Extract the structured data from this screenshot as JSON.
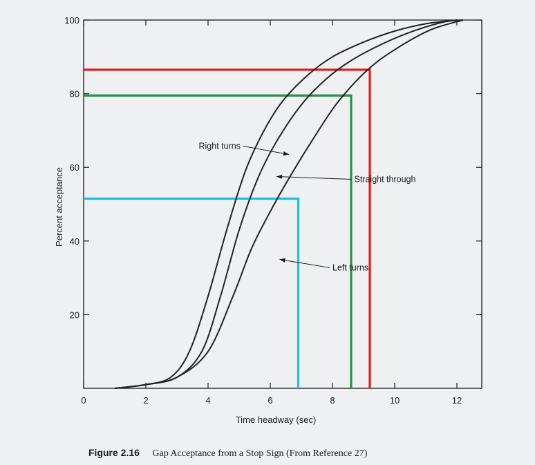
{
  "chart_data": {
    "type": "line",
    "title": "",
    "xlabel": "Time headway (sec)",
    "ylabel": "Percent acceptance",
    "xlim": [
      0,
      12.8
    ],
    "ylim": [
      0,
      100
    ],
    "xticks": [
      0,
      2,
      4,
      6,
      8,
      10,
      12
    ],
    "yticks": [
      20,
      40,
      60,
      80,
      100
    ],
    "grid": false,
    "series": [
      {
        "name": "Right turns",
        "color": "#222222",
        "points": [
          [
            1.0,
            0
          ],
          [
            2,
            1
          ],
          [
            2.8,
            3
          ],
          [
            3.4,
            10
          ],
          [
            4.0,
            25
          ],
          [
            4.6,
            43
          ],
          [
            5.2,
            59
          ],
          [
            5.8,
            70
          ],
          [
            6.4,
            78
          ],
          [
            7.2,
            85
          ],
          [
            8.0,
            90
          ],
          [
            9.0,
            94
          ],
          [
            10.0,
            97
          ],
          [
            11.0,
            99
          ],
          [
            12.0,
            100
          ]
        ]
      },
      {
        "name": "Straight through",
        "color": "#222222",
        "points": [
          [
            1.0,
            0
          ],
          [
            2,
            1
          ],
          [
            3,
            3
          ],
          [
            3.8,
            10
          ],
          [
            4.4,
            25
          ],
          [
            5.0,
            43
          ],
          [
            5.6,
            57
          ],
          [
            6.2,
            67
          ],
          [
            7.0,
            77
          ],
          [
            7.8,
            84
          ],
          [
            8.6,
            89
          ],
          [
            9.6,
            93.5
          ],
          [
            10.6,
            97
          ],
          [
            11.6,
            99.5
          ],
          [
            12.2,
            100
          ]
        ]
      },
      {
        "name": "Left turns",
        "color": "#222222",
        "points": [
          [
            1.0,
            0
          ],
          [
            2,
            1
          ],
          [
            3,
            3
          ],
          [
            4.0,
            10
          ],
          [
            4.8,
            25
          ],
          [
            5.4,
            38
          ],
          [
            6.0,
            48
          ],
          [
            6.6,
            57
          ],
          [
            7.4,
            68
          ],
          [
            8.2,
            78
          ],
          [
            9.2,
            87
          ],
          [
            10.2,
            93
          ],
          [
            11.2,
            97.5
          ],
          [
            12.2,
            100
          ]
        ]
      }
    ],
    "reference_lines": [
      {
        "name": "red",
        "color": "#e8151b",
        "x": 9.2,
        "y": 86.5
      },
      {
        "name": "green",
        "color": "#2a8f4f",
        "x": 8.6,
        "y": 79.5
      },
      {
        "name": "blue",
        "color": "#1bbfe8",
        "x": 6.9,
        "y": 51.5
      }
    ],
    "annotations": [
      {
        "text": "Right turns",
        "tx": 3.7,
        "ty": 65,
        "ax": 6.6,
        "ay": 63.5
      },
      {
        "text": "Straight through",
        "tx": 8.7,
        "ty": 56,
        "ax": 6.2,
        "ay": 57.5
      },
      {
        "text": "Left turns",
        "tx": 8.0,
        "ty": 32,
        "ax": 6.3,
        "ay": 35
      }
    ]
  },
  "caption": {
    "label": "Figure 2.16",
    "text": "Gap Acceptance from a Stop Sign (From Reference 27)"
  }
}
